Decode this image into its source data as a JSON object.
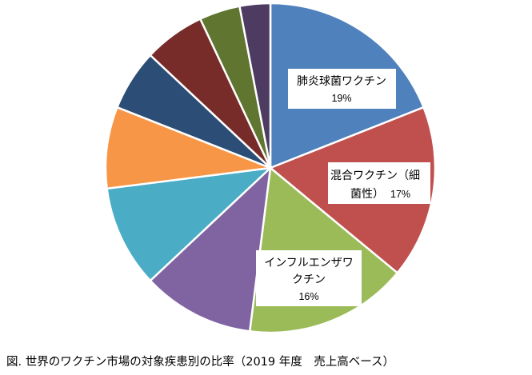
{
  "caption": "図.  世界のワクチン市場の対象疾患別の比率（2019 年度　売上高ベース）",
  "chart_data": {
    "type": "pie",
    "title": "",
    "start": "top",
    "direction": "clockwise",
    "slices": [
      {
        "label_lines": [
          "肺炎球菌ワクチン"
        ],
        "value_label": "19%",
        "value": 19,
        "color": "#4F81BD"
      },
      {
        "label_lines": [
          "混合ワクチン（細",
          "菌性）"
        ],
        "value_label": "17%",
        "value": 17,
        "color": "#C0504D"
      },
      {
        "label_lines": [
          "インフルエンザワ",
          "クチン"
        ],
        "value_label": "16%",
        "value": 16,
        "color": "#9BBB59"
      },
      {
        "label_lines": [],
        "value_label": "",
        "value": 11,
        "color": "#8064A2"
      },
      {
        "label_lines": [],
        "value_label": "",
        "value": 10,
        "color": "#4BACC6"
      },
      {
        "label_lines": [],
        "value_label": "",
        "value": 8,
        "color": "#F79646"
      },
      {
        "label_lines": [],
        "value_label": "",
        "value": 6,
        "color": "#2C4D75"
      },
      {
        "label_lines": [],
        "value_label": "",
        "value": 6,
        "color": "#772C2A"
      },
      {
        "label_lines": [],
        "value_label": "",
        "value": 4,
        "color": "#5F7530"
      },
      {
        "label_lines": [],
        "value_label": "",
        "value": 3,
        "color": "#4D3B62"
      }
    ]
  }
}
